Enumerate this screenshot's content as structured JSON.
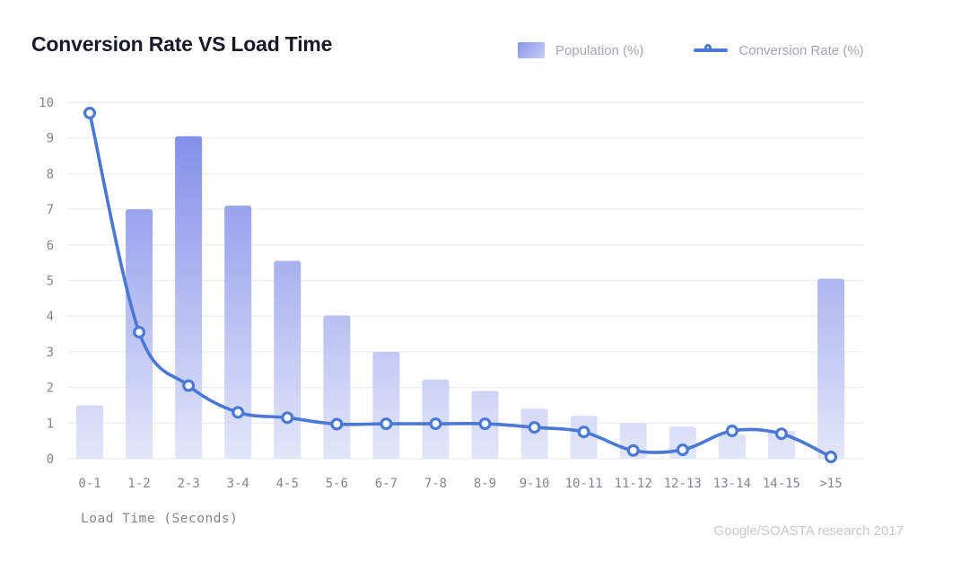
{
  "header": {
    "title": "Conversion Rate VS Load Time"
  },
  "legend": {
    "population_label": "Population (%)",
    "conversion_label": "Conversion Rate (%)"
  },
  "footer": {
    "xlabel": "Load Time (Seconds)",
    "source": "Google/SOASTA research 2017"
  },
  "colors": {
    "bar_gradient_top": "#7987e8",
    "bar_gradient_bottom": "#e3e6f9",
    "line": "#4a78d6",
    "marker_fill": "#ffffff",
    "grid": "#efeff1",
    "axis_text": "#85868f",
    "title_text": "#181a2b",
    "legend_text": "#a4a7b1",
    "source_text": "#c8c8ca"
  },
  "chart_data": {
    "type": "bar",
    "subtype": "bar-line combo",
    "title": "Conversion Rate VS Load Time",
    "xlabel": "Load Time (Seconds)",
    "ylabel": "",
    "ylim": [
      0,
      10
    ],
    "yticks": [
      0,
      1,
      2,
      3,
      4,
      5,
      6,
      7,
      8,
      9,
      10
    ],
    "grid": "horizontal",
    "legend_position": "top-right",
    "source": "Google/SOASTA research 2017",
    "categories": [
      "0-1",
      "1-2",
      "2-3",
      "3-4",
      "4-5",
      "5-6",
      "6-7",
      "7-8",
      "8-9",
      "9-10",
      "10-11",
      "11-12",
      "12-13",
      "13-14",
      "14-15",
      ">15"
    ],
    "series": [
      {
        "name": "Population (%)",
        "type": "bar",
        "values": [
          1.5,
          7.0,
          9.05,
          7.1,
          5.55,
          4.02,
          3.0,
          2.22,
          1.9,
          1.4,
          1.2,
          1.0,
          0.9,
          0.68,
          0.78,
          5.05
        ]
      },
      {
        "name": "Conversion Rate (%)",
        "type": "line",
        "values": [
          9.7,
          3.55,
          2.05,
          1.3,
          1.15,
          0.97,
          0.98,
          0.98,
          0.98,
          0.88,
          0.75,
          0.23,
          0.25,
          0.78,
          0.7,
          0.05
        ]
      }
    ]
  }
}
